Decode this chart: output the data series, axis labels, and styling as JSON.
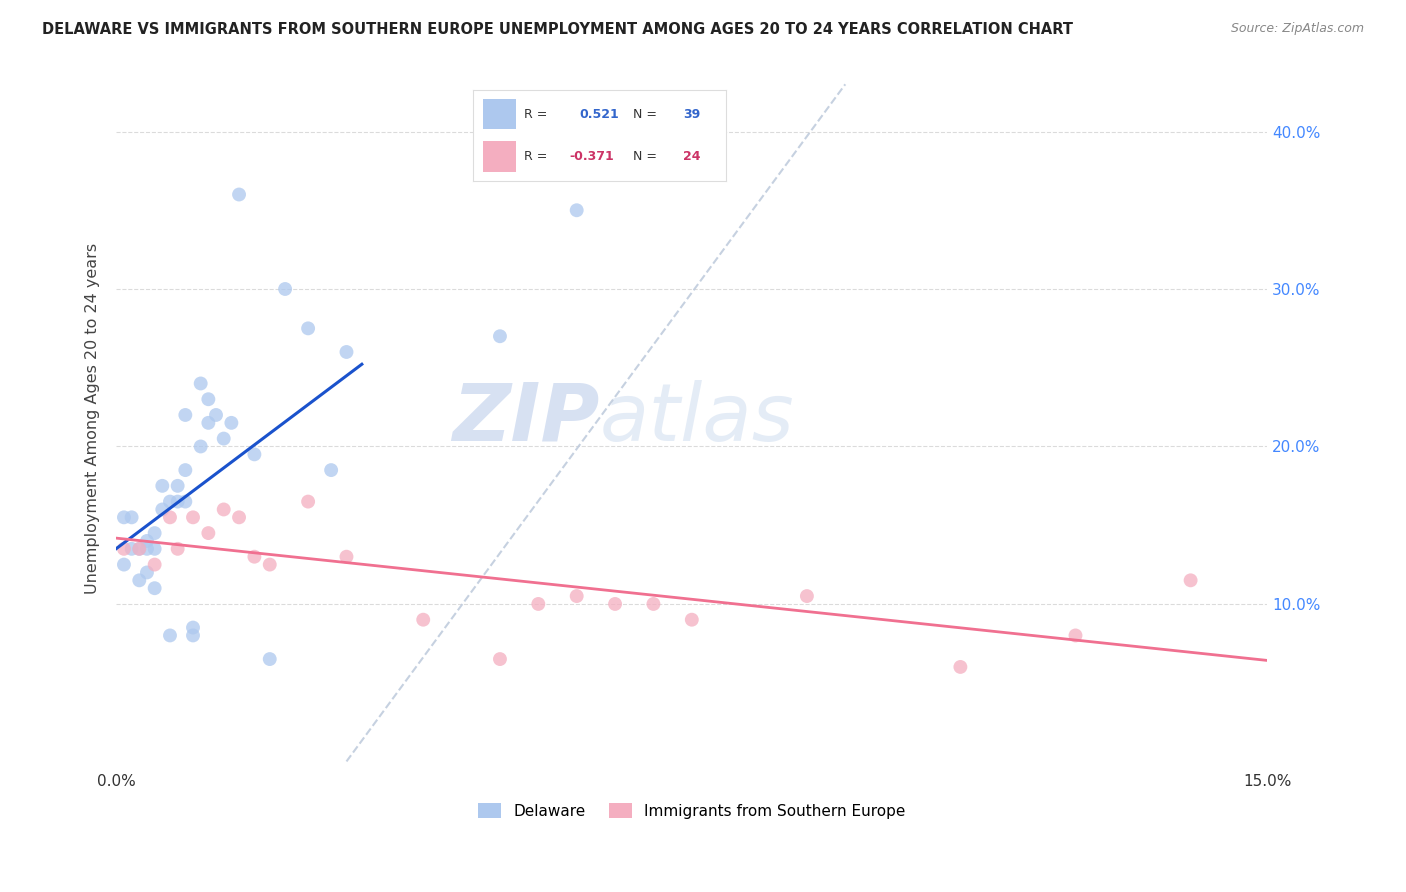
{
  "title": "DELAWARE VS IMMIGRANTS FROM SOUTHERN EUROPE UNEMPLOYMENT AMONG AGES 20 TO 24 YEARS CORRELATION CHART",
  "source": "Source: ZipAtlas.com",
  "ylabel": "Unemployment Among Ages 20 to 24 years",
  "xlim": [
    0.0,
    0.15
  ],
  "ylim": [
    -0.005,
    0.44
  ],
  "R1": 0.521,
  "N1": 39,
  "R2": -0.371,
  "N2": 24,
  "blue_color": "#adc8ee",
  "pink_color": "#f4aec0",
  "blue_line_color": "#1a52cc",
  "pink_line_color": "#f07090",
  "diag_color": "#c0ccdd",
  "dot_size": 100,
  "dot_alpha": 0.75,
  "legend_label1": "Delaware",
  "legend_label2": "Immigrants from Southern Europe",
  "blue_dots_x": [
    0.001,
    0.001,
    0.002,
    0.002,
    0.003,
    0.003,
    0.004,
    0.004,
    0.004,
    0.005,
    0.005,
    0.005,
    0.006,
    0.006,
    0.007,
    0.007,
    0.008,
    0.008,
    0.009,
    0.009,
    0.009,
    0.01,
    0.01,
    0.011,
    0.011,
    0.012,
    0.012,
    0.013,
    0.014,
    0.015,
    0.016,
    0.018,
    0.02,
    0.022,
    0.025,
    0.028,
    0.03,
    0.05,
    0.06
  ],
  "blue_dots_y": [
    0.125,
    0.155,
    0.135,
    0.155,
    0.135,
    0.115,
    0.14,
    0.135,
    0.12,
    0.145,
    0.135,
    0.11,
    0.175,
    0.16,
    0.165,
    0.08,
    0.175,
    0.165,
    0.185,
    0.22,
    0.165,
    0.085,
    0.08,
    0.24,
    0.2,
    0.23,
    0.215,
    0.22,
    0.205,
    0.215,
    0.36,
    0.195,
    0.065,
    0.3,
    0.275,
    0.185,
    0.26,
    0.27,
    0.35
  ],
  "pink_dots_x": [
    0.001,
    0.003,
    0.005,
    0.007,
    0.008,
    0.01,
    0.012,
    0.014,
    0.016,
    0.018,
    0.02,
    0.025,
    0.03,
    0.04,
    0.05,
    0.055,
    0.06,
    0.065,
    0.07,
    0.075,
    0.09,
    0.11,
    0.125,
    0.14
  ],
  "pink_dots_y": [
    0.135,
    0.135,
    0.125,
    0.155,
    0.135,
    0.155,
    0.145,
    0.16,
    0.155,
    0.13,
    0.125,
    0.165,
    0.13,
    0.09,
    0.065,
    0.1,
    0.105,
    0.1,
    0.1,
    0.09,
    0.105,
    0.06,
    0.08,
    0.115
  ],
  "watermark_zip": "ZIP",
  "watermark_atlas": "atlas",
  "background_color": "#ffffff",
  "grid_color": "#d8d8d8"
}
